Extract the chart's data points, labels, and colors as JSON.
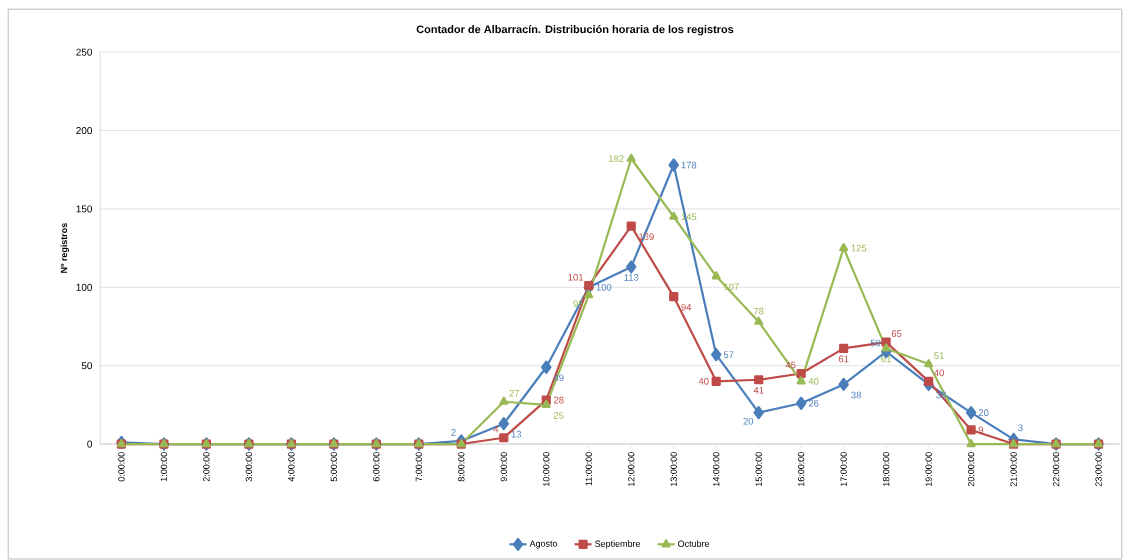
{
  "chart_data": {
    "type": "line",
    "title": "Contador de Albarracín. Distribución horaria de los registros",
    "ylabel": "Nº registros",
    "categories": [
      "0:00:00",
      "1:00:00",
      "2:00:00",
      "3:00:00",
      "4:00:00",
      "5:00:00",
      "6:00:00",
      "7:00:00",
      "8:00:00",
      "9:00:00",
      "10:00:00",
      "11:00:00",
      "12:00:00",
      "13:00:00",
      "14:00:00",
      "15:00:00",
      "16:00:00",
      "17:00:00",
      "18:00:00",
      "19:00:00",
      "20:00:00",
      "21:00:00",
      "22:00:00",
      "23:00:00"
    ],
    "series": [
      {
        "name": "Agosto",
        "color": "#4a7ebb",
        "marker": "diamond",
        "values": [
          1,
          0,
          0,
          0,
          0,
          0,
          0,
          0,
          2,
          13,
          49,
          100,
          113,
          178,
          57,
          20,
          26,
          38,
          59,
          38,
          20,
          3,
          0,
          0
        ],
        "value_labels": [
          null,
          null,
          null,
          null,
          null,
          null,
          null,
          null,
          "2",
          "13",
          "49",
          "100",
          "113",
          "178",
          "57",
          "20",
          "26",
          "38",
          "59",
          "38",
          "20",
          "3",
          null,
          null
        ]
      },
      {
        "name": "Septiembre",
        "color": "#be4b48",
        "marker": "square",
        "values": [
          0,
          0,
          0,
          0,
          0,
          0,
          0,
          0,
          0,
          4,
          28,
          101,
          139,
          94,
          40,
          41,
          45,
          61,
          65,
          40,
          9,
          0,
          0,
          0
        ],
        "value_labels": [
          null,
          null,
          null,
          null,
          null,
          null,
          null,
          null,
          null,
          "4",
          "28",
          "101",
          "139",
          "94",
          "40",
          "41",
          "45",
          "61",
          "65",
          "40",
          "9",
          null,
          null,
          null
        ]
      },
      {
        "name": "Octubre",
        "color": "#98b954",
        "marker": "triangle",
        "values": [
          0,
          0,
          0,
          0,
          0,
          0,
          0,
          0,
          0,
          27,
          25,
          95,
          182,
          145,
          107,
          78,
          40,
          125,
          61,
          51,
          0,
          0,
          0,
          0
        ],
        "value_labels": [
          null,
          null,
          null,
          null,
          null,
          null,
          null,
          null,
          null,
          "27",
          "25",
          "95",
          "182",
          "145",
          "107",
          "78",
          "40",
          "125",
          "61",
          "51",
          null,
          null,
          null,
          null
        ]
      }
    ],
    "ylim": [
      0,
      250
    ],
    "yticks": [
      0,
      50,
      100,
      150,
      200,
      250
    ],
    "grid": "y",
    "legend": "bottom",
    "line_style": "solid"
  }
}
